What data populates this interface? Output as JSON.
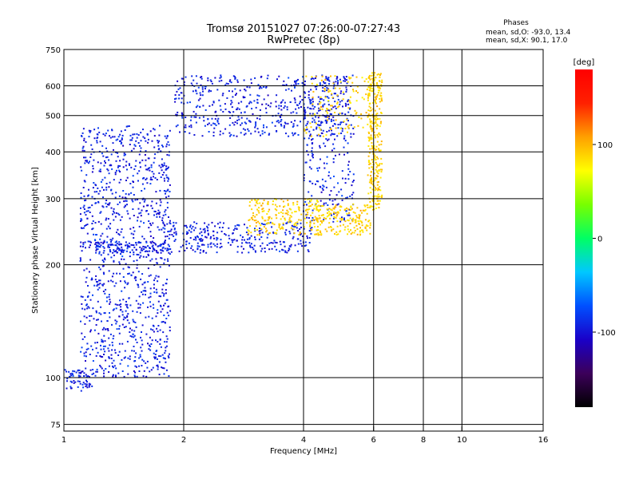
{
  "chart_data": {
    "type": "scatter",
    "title": "Tromsø 20151027 07:26:00-07:27:43",
    "subtitle": "RwPretec (8p)",
    "xlabel": "Frequency [MHz]",
    "ylabel": "Stationary phase Virtual Height [km]",
    "xscale": "log",
    "yscale": "log",
    "xlim": [
      1,
      16
    ],
    "ylim": [
      72,
      750
    ],
    "xticks": [
      1,
      2,
      4,
      6,
      8,
      10,
      16
    ],
    "yticks": [
      75,
      100,
      200,
      300,
      400,
      500,
      600,
      750
    ],
    "grid": true,
    "stats": {
      "heading": "Phases",
      "line_o": "mean, sd,O: -93.0, 13.4",
      "line_x": "mean, sd,X:  90.1, 17.0"
    },
    "colorbar": {
      "label": "[deg]",
      "min": -180,
      "max": 180,
      "ticks": [
        100,
        0,
        -100
      ],
      "tick_labels": [
        "100",
        "0",
        "-100"
      ],
      "colormap": [
        "#000000",
        "#3c005a",
        "#1a00c8",
        "#0050ff",
        "#00c8ff",
        "#00ff64",
        "#78ff00",
        "#ffff00",
        "#ffa000",
        "#ff2000",
        "#ff0000"
      ]
    },
    "series": [
      {
        "mode": "O",
        "phase_deg": -93,
        "segments": [
          {
            "freq_range": [
              1.0,
              1.18
            ],
            "height_range": [
              92,
              105
            ],
            "count": 60
          },
          {
            "freq_range": [
              1.1,
              1.85
            ],
            "height_range": [
              100,
              470
            ],
            "count": 1100
          },
          {
            "freq_range": [
              1.2,
              1.8
            ],
            "height_range": [
              215,
              230
            ],
            "count": 120
          },
          {
            "freq_range": [
              1.8,
              4.2
            ],
            "height_range": [
              215,
              260
            ],
            "count": 300
          },
          {
            "freq_range": [
              4.0,
              5.35
            ],
            "height_range": [
              260,
              640
            ],
            "count": 260
          },
          {
            "freq_range": [
              1.9,
              5.3
            ],
            "height_range": [
              440,
              640
            ],
            "count": 500
          }
        ]
      },
      {
        "mode": "X",
        "phase_deg": 90,
        "segments": [
          {
            "freq_range": [
              2.9,
              4.4
            ],
            "height_range": [
              240,
              300
            ],
            "count": 220
          },
          {
            "freq_range": [
              4.3,
              5.9
            ],
            "height_range": [
              240,
              290
            ],
            "count": 180
          },
          {
            "freq_range": [
              5.8,
              6.3
            ],
            "height_range": [
              280,
              650
            ],
            "count": 300
          },
          {
            "freq_range": [
              4.0,
              5.9
            ],
            "height_range": [
              440,
              640
            ],
            "count": 120
          }
        ]
      }
    ]
  }
}
